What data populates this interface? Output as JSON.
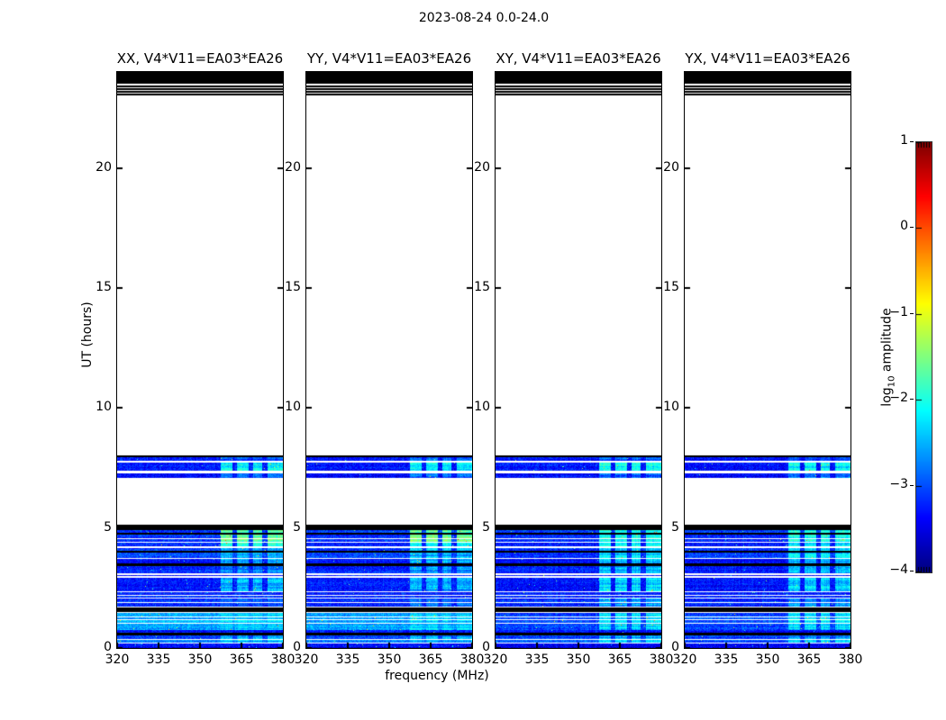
{
  "figure": {
    "title": "2023-08-24 0.0-24.0"
  },
  "chart_data": {
    "type": "heatmap",
    "title": "2023-08-24 0.0-24.0",
    "xlabel": "frequency (MHz)",
    "ylabel": "UT (hours)",
    "xlim": [
      320,
      380
    ],
    "ylim": [
      0,
      24
    ],
    "xticks": [
      320,
      335,
      350,
      365,
      380
    ],
    "yticks": [
      0,
      5,
      10,
      15,
      20
    ],
    "colormap": "jet",
    "panels": [
      {
        "label": "XX, V4*V11=EA03*EA26",
        "pol": "parallel",
        "seed": 11
      },
      {
        "label": "YY, V4*V11=EA03*EA26",
        "pol": "parallel",
        "seed": 22
      },
      {
        "label": "XY, V4*V11=EA03*EA26",
        "pol": "cross",
        "seed": 33
      },
      {
        "label": "YX, V4*V11=EA03*EA26",
        "pol": "cross",
        "seed": 44
      }
    ],
    "colorbar": {
      "label_pre": "log",
      "label_sub": "10",
      "label_post": " amplitude",
      "ticks": [
        1,
        0,
        -1,
        -2,
        -3,
        -4
      ],
      "vmin": -4,
      "vmax": 1
    },
    "rfi_band_mhz": [
      357.5,
      380
    ],
    "rfi_gaps_mhz": [
      362.5,
      368.5,
      373.5
    ],
    "rows": {
      "noise": [
        [
          7.8,
          7.95,
          -3.3,
          -3.3,
          -2.9,
          -2.9
        ],
        [
          7.39,
          7.72,
          -3.25,
          -3.3,
          -2.15,
          -2.15
        ],
        [
          7.09,
          7.28,
          -3.35,
          -3.35,
          -2.9,
          -2.9
        ],
        [
          4.8,
          4.91,
          -3.1,
          -3.1,
          -1.7,
          -2.0
        ],
        [
          4.43,
          4.72,
          -3.15,
          -3.2,
          -1.6,
          -2.0
        ],
        [
          4.24,
          4.39,
          -3.2,
          -3.25,
          -2.0,
          -2.2
        ],
        [
          4.05,
          4.16,
          -3.1,
          -3.15,
          -2.4,
          -2.4
        ],
        [
          3.75,
          3.97,
          -3.0,
          -3.1,
          -2.5,
          -2.3
        ],
        [
          3.53,
          3.71,
          -3.3,
          -3.35,
          -2.6,
          -2.5
        ],
        [
          3.11,
          3.4,
          -3.2,
          -3.25,
          -2.7,
          -2.5
        ],
        [
          3.0,
          3.04,
          -3.3,
          -3.3,
          null,
          null
        ],
        [
          2.36,
          2.92,
          -3.25,
          -3.3,
          -2.5,
          -2.3
        ],
        [
          2.21,
          2.33,
          -3.2,
          -3.25,
          null,
          null
        ],
        [
          2.1,
          2.18,
          -3.15,
          -3.2,
          null,
          null
        ],
        [
          1.72,
          2.06,
          -3.15,
          -3.2,
          -2.8,
          -2.6
        ],
        [
          0.75,
          1.46,
          -2.55,
          -3.05,
          -2.35,
          -2.25
        ],
        [
          0.64,
          0.75,
          -3.3,
          -3.35,
          null,
          null
        ],
        [
          0.38,
          0.53,
          -3.0,
          -3.1,
          -2.6,
          -2.6
        ],
        [
          0.23,
          0.34,
          -2.7,
          -3.0,
          -2.4,
          -2.4
        ],
        [
          0.04,
          0.19,
          -3.35,
          -3.4,
          null,
          null
        ],
        [
          0.0,
          0.04,
          -3.6,
          -3.6,
          null,
          null
        ]
      ],
      "white": [
        [
          4.55,
          4.585
        ],
        [
          1.9,
          1.93
        ],
        [
          1.28,
          1.315
        ],
        [
          1.15,
          1.185
        ],
        [
          1.02,
          1.055
        ]
      ],
      "black": [
        [
          23.51,
          24.0
        ],
        [
          23.36,
          23.43
        ],
        [
          23.25,
          23.32
        ],
        [
          23.14,
          23.21
        ],
        [
          23.04,
          23.1
        ],
        [
          7.95,
          8.02
        ],
        [
          4.91,
          5.12
        ],
        [
          4.73,
          4.8
        ],
        [
          3.98,
          4.05
        ],
        [
          3.41,
          3.51
        ],
        [
          1.5,
          1.69
        ],
        [
          0.53,
          0.64
        ]
      ]
    }
  }
}
